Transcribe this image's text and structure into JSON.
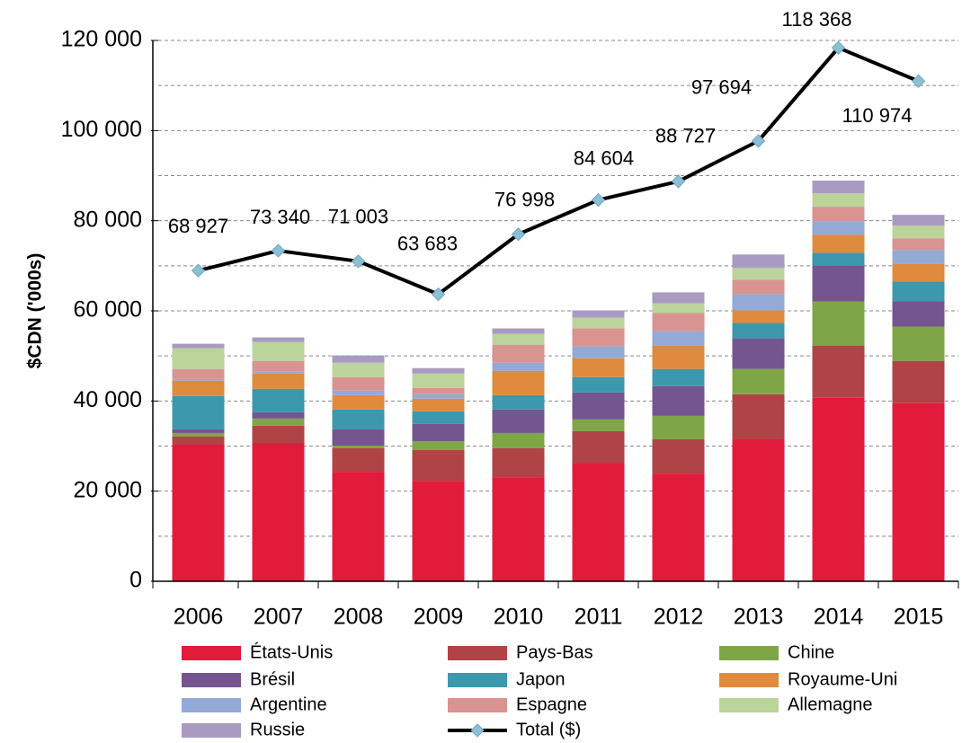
{
  "chart_data": {
    "type": "bar",
    "stacked": true,
    "ylabel": "$CDN ('000s)",
    "categories": [
      "2006",
      "2007",
      "2008",
      "2009",
      "2010",
      "2011",
      "2012",
      "2013",
      "2014",
      "2015"
    ],
    "ylim": [
      0,
      120000
    ],
    "yticks": [
      0,
      {
        "value": 20000,
        "label": "20 000"
      },
      {
        "value": 40000,
        "label": "40 000"
      },
      {
        "value": 60000,
        "label": "60 000"
      },
      {
        "value": 80000,
        "label": "80 000"
      },
      {
        "value": 100000,
        "label": "100 000"
      },
      {
        "value": 120000,
        "label": "120 000"
      }
    ],
    "grid": true,
    "series": [
      {
        "name": "États-Unis",
        "color": "#e31b3a",
        "values": [
          30300,
          30700,
          24300,
          22300,
          23100,
          26300,
          23900,
          31500,
          40700,
          39500
        ]
      },
      {
        "name": "Pays-Bas",
        "color": "#b04346",
        "values": [
          1800,
          3800,
          5200,
          6800,
          6400,
          7000,
          7600,
          10000,
          11600,
          9400
        ]
      },
      {
        "name": "Chine",
        "color": "#7fa646",
        "values": [
          800,
          1600,
          600,
          2000,
          3400,
          2600,
          5200,
          5600,
          9800,
          7600
        ]
      },
      {
        "name": "Brésil",
        "color": "#74558f",
        "values": [
          800,
          1400,
          3600,
          3800,
          5200,
          6000,
          6600,
          6800,
          8000,
          5600
        ]
      },
      {
        "name": "Japon",
        "color": "#3b98ad",
        "values": [
          7400,
          5200,
          4400,
          2800,
          3200,
          3400,
          3800,
          3400,
          2800,
          4400
        ]
      },
      {
        "name": "Royaume-Uni",
        "color": "#e08a3e",
        "values": [
          3400,
          3400,
          3200,
          2800,
          5400,
          4200,
          5200,
          2800,
          4000,
          4000
        ]
      },
      {
        "name": "Argentine",
        "color": "#93a9d6",
        "values": [
          400,
          400,
          1000,
          1000,
          1800,
          2600,
          3200,
          3600,
          3000,
          3000
        ]
      },
      {
        "name": "Espagne",
        "color": "#d99390",
        "values": [
          2200,
          2400,
          3000,
          1400,
          4000,
          4000,
          4000,
          3200,
          3200,
          2600
        ]
      },
      {
        "name": "Allemagne",
        "color": "#bbd49a",
        "values": [
          4600,
          4200,
          3200,
          3200,
          2400,
          2400,
          2200,
          2600,
          3000,
          2800
        ]
      },
      {
        "name": "Russie",
        "color": "#a99ac2",
        "values": [
          1000,
          1000,
          1600,
          1200,
          1200,
          1600,
          2400,
          3000,
          2800,
          2400
        ]
      }
    ],
    "line": {
      "name": "Total ($)",
      "color": "#000000",
      "marker_color": "#8bbfd4",
      "values": [
        68927,
        73340,
        71003,
        63683,
        76998,
        84604,
        88727,
        97694,
        118368,
        110974
      ],
      "value_labels": [
        "68 927",
        "73 340",
        "71 003",
        "63 683",
        "76 998",
        "84 604",
        "88 727",
        "97 694",
        "118 368",
        "110 974"
      ]
    }
  }
}
